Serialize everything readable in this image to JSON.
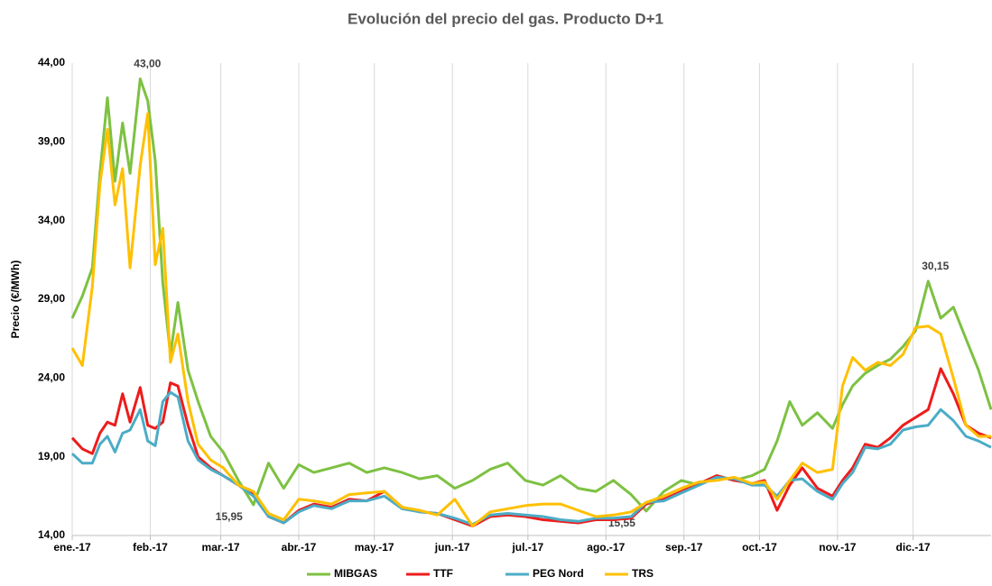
{
  "chart_data": {
    "type": "line",
    "title": "Evolución del precio del gas. Producto D+1",
    "y_label": "Precio (€/MWh)",
    "grid": "x",
    "legend": "bottom",
    "xlim": [
      0,
      365
    ],
    "xticks": [
      {
        "value": 0,
        "label": "ene.-17"
      },
      {
        "value": 31,
        "label": "feb.-17"
      },
      {
        "value": 59,
        "label": "mar.-17"
      },
      {
        "value": 90,
        "label": "abr.-17"
      },
      {
        "value": 120,
        "label": "may.-17"
      },
      {
        "value": 151,
        "label": "jun.-17"
      },
      {
        "value": 181,
        "label": "jul.-17"
      },
      {
        "value": 212,
        "label": "ago.-17"
      },
      {
        "value": 243,
        "label": "sep.-17"
      },
      {
        "value": 273,
        "label": "oct.-17"
      },
      {
        "value": 304,
        "label": "nov.-17"
      },
      {
        "value": 334,
        "label": "dic.-17"
      }
    ],
    "ylim": [
      14,
      44
    ],
    "yticks": [
      {
        "value": 14,
        "label": "14,00"
      },
      {
        "value": 19,
        "label": "19,00"
      },
      {
        "value": 24,
        "label": "24,00"
      },
      {
        "value": 29,
        "label": "29,00"
      },
      {
        "value": 34,
        "label": "34,00"
      },
      {
        "value": 39,
        "label": "39,00"
      },
      {
        "value": 44,
        "label": "44,00"
      }
    ],
    "x": [
      0,
      4,
      8,
      11,
      14,
      17,
      20,
      23,
      27,
      30,
      33,
      36,
      39,
      42,
      46,
      50,
      55,
      60,
      66,
      72,
      78,
      84,
      90,
      96,
      103,
      110,
      117,
      124,
      131,
      138,
      145,
      152,
      159,
      166,
      173,
      180,
      187,
      194,
      201,
      208,
      215,
      222,
      228,
      235,
      242,
      249,
      256,
      263,
      270,
      275,
      280,
      285,
      290,
      296,
      302,
      306,
      310,
      315,
      320,
      325,
      330,
      335,
      340,
      345,
      350,
      355,
      360,
      365
    ],
    "series": [
      {
        "name": "MIBGAS",
        "color": "#7dc142",
        "values": [
          27.8,
          29.2,
          31,
          37,
          41.8,
          36.5,
          40.2,
          37,
          43,
          41.6,
          37.8,
          30,
          25.5,
          28.8,
          24.5,
          22.5,
          20.3,
          19.3,
          17.5,
          15.95,
          18.6,
          17,
          18.5,
          18,
          18.3,
          18.6,
          18,
          18.3,
          18,
          17.6,
          17.8,
          17,
          17.5,
          18.2,
          18.6,
          17.5,
          17.2,
          17.8,
          17,
          16.8,
          17.5,
          16.6,
          15.55,
          16.8,
          17.5,
          17.2,
          17.8,
          17.5,
          17.8,
          18.2,
          20,
          22.5,
          21,
          21.8,
          20.8,
          22.3,
          23.5,
          24.3,
          24.8,
          25.2,
          26,
          27,
          30.15,
          27.8,
          28.5,
          26.5,
          24.5,
          22
        ],
        "value_labels": [
          null,
          null,
          null,
          null,
          null,
          null,
          null,
          null,
          "43,00",
          null,
          null,
          null,
          null,
          null,
          null,
          null,
          null,
          null,
          null,
          "15,95",
          null,
          null,
          null,
          null,
          null,
          null,
          null,
          null,
          null,
          null,
          null,
          null,
          null,
          null,
          null,
          null,
          null,
          null,
          null,
          null,
          null,
          null,
          "15,55",
          null,
          null,
          null,
          null,
          null,
          null,
          null,
          null,
          null,
          null,
          null,
          null,
          null,
          null,
          null,
          null,
          null,
          null,
          null,
          "30,15",
          null,
          null,
          null,
          null,
          null
        ]
      },
      {
        "name": "TTF",
        "color": "#ee1c1c",
        "values": [
          20.2,
          19.5,
          19.2,
          20.5,
          21.2,
          21,
          23,
          21.2,
          23.4,
          21,
          20.8,
          21.2,
          23.7,
          23.5,
          21,
          19,
          18.3,
          17.8,
          17.2,
          16.6,
          15.2,
          14.8,
          15.6,
          16,
          15.8,
          16.3,
          16.2,
          16.8,
          15.8,
          15.5,
          15.4,
          15,
          14.6,
          15.2,
          15.3,
          15.2,
          15,
          14.9,
          14.8,
          15,
          15,
          15.1,
          16,
          16.3,
          16.8,
          17.3,
          17.8,
          17.5,
          17.3,
          17.5,
          15.6,
          17.2,
          18.3,
          17,
          16.5,
          17.5,
          18.3,
          19.8,
          19.6,
          20.2,
          21,
          21.5,
          22,
          24.6,
          23,
          21,
          20.5,
          20.2
        ]
      },
      {
        "name": "PEG Nord",
        "color": "#4bacc6",
        "values": [
          19.2,
          18.6,
          18.6,
          19.8,
          20.3,
          19.3,
          20.5,
          20.7,
          22,
          20,
          19.7,
          22.5,
          23.1,
          22.8,
          20,
          18.8,
          18.2,
          17.8,
          17.2,
          16.5,
          15.2,
          14.8,
          15.5,
          15.9,
          15.7,
          16.2,
          16.2,
          16.5,
          15.7,
          15.5,
          15.4,
          15.1,
          14.7,
          15.3,
          15.4,
          15.3,
          15.2,
          15,
          14.9,
          15.1,
          15.1,
          15.2,
          16.1,
          16.2,
          16.7,
          17.2,
          17.7,
          17.6,
          17.2,
          17.2,
          16.5,
          17.5,
          17.6,
          16.8,
          16.3,
          17.3,
          18,
          19.6,
          19.5,
          19.8,
          20.7,
          20.9,
          21,
          22,
          21.3,
          20.3,
          20,
          19.6
        ]
      },
      {
        "name": "TRS",
        "color": "#ffc000",
        "values": [
          25.9,
          24.8,
          29.8,
          36.3,
          39.8,
          35,
          37.3,
          31,
          37.5,
          40.8,
          31.2,
          33.5,
          25,
          26.8,
          22.5,
          19.8,
          18.8,
          18.3,
          17.2,
          16.8,
          15.4,
          15,
          16.3,
          16.2,
          16,
          16.6,
          16.7,
          16.8,
          15.8,
          15.6,
          15.3,
          16.3,
          14.6,
          15.5,
          15.7,
          15.9,
          16,
          16,
          15.6,
          15.2,
          15.3,
          15.5,
          16.1,
          16.5,
          17,
          17.4,
          17.5,
          17.7,
          17.3,
          17.4,
          16.3,
          17.5,
          18.6,
          18,
          18.2,
          23.5,
          25.3,
          24.5,
          25,
          24.8,
          25.5,
          27.2,
          27.3,
          26.8,
          24,
          21,
          20.3,
          20.3
        ]
      }
    ]
  }
}
